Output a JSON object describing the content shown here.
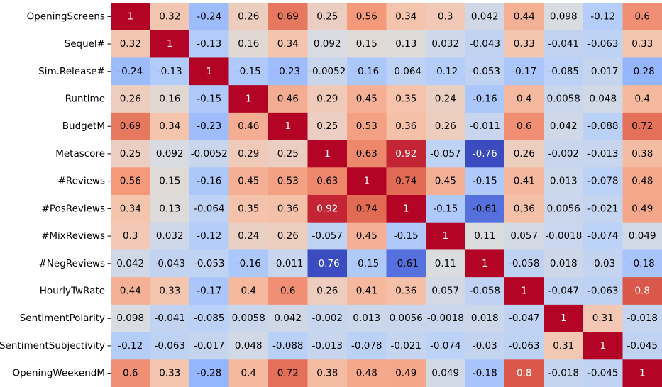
{
  "chart_data": {
    "type": "heatmap",
    "colormap": "coolwarm",
    "vmin": -0.76,
    "vmax": 1,
    "x_tick_labels_visible": false,
    "row_labels": [
      "OpeningScreens",
      "Sequel#",
      "Sim.Release#",
      "Runtime",
      "BudgetM",
      "Metascore",
      "#Reviews",
      "#PosReviews",
      "#MixReviews",
      "#NegReviews",
      "HourlyTwRate",
      "SentimentPolarity",
      "SentimentSubjectivity",
      "OpeningWeekendM"
    ],
    "values": [
      [
        1,
        0.32,
        -0.24,
        0.26,
        0.69,
        0.25,
        0.56,
        0.34,
        0.3,
        0.042,
        0.44,
        0.098,
        -0.12,
        0.6
      ],
      [
        0.32,
        1,
        -0.13,
        0.16,
        0.34,
        0.092,
        0.15,
        0.13,
        0.032,
        -0.043,
        0.33,
        -0.041,
        -0.063,
        0.33
      ],
      [
        -0.24,
        -0.13,
        1,
        -0.15,
        -0.23,
        -0.0052,
        -0.16,
        -0.064,
        -0.12,
        -0.053,
        -0.17,
        -0.085,
        -0.017,
        -0.28
      ],
      [
        0.26,
        0.16,
        -0.15,
        1,
        0.46,
        0.29,
        0.45,
        0.35,
        0.24,
        -0.16,
        0.4,
        0.0058,
        0.048,
        0.4
      ],
      [
        0.69,
        0.34,
        -0.23,
        0.46,
        1,
        0.25,
        0.53,
        0.36,
        0.26,
        -0.011,
        0.6,
        0.042,
        -0.088,
        0.72
      ],
      [
        0.25,
        0.092,
        -0.0052,
        0.29,
        0.25,
        1,
        0.63,
        0.92,
        -0.057,
        -0.76,
        0.26,
        -0.002,
        -0.013,
        0.38
      ],
      [
        0.56,
        0.15,
        -0.16,
        0.45,
        0.53,
        0.63,
        1,
        0.74,
        0.45,
        -0.15,
        0.41,
        0.013,
        -0.078,
        0.48
      ],
      [
        0.34,
        0.13,
        -0.064,
        0.35,
        0.36,
        0.92,
        0.74,
        1,
        -0.15,
        -0.61,
        0.36,
        0.0056,
        -0.021,
        0.49
      ],
      [
        0.3,
        0.032,
        -0.12,
        0.24,
        0.26,
        -0.057,
        0.45,
        -0.15,
        1,
        0.11,
        0.057,
        -0.0018,
        -0.074,
        0.049
      ],
      [
        0.042,
        -0.043,
        -0.053,
        -0.16,
        -0.011,
        -0.76,
        -0.15,
        -0.61,
        0.11,
        1,
        -0.058,
        0.018,
        -0.03,
        -0.18
      ],
      [
        0.44,
        0.33,
        -0.17,
        0.4,
        0.6,
        0.26,
        0.41,
        0.36,
        0.057,
        -0.058,
        1,
        -0.047,
        -0.063,
        0.8
      ],
      [
        0.098,
        -0.041,
        -0.085,
        0.0058,
        0.042,
        -0.002,
        0.013,
        0.0056,
        -0.0018,
        0.018,
        -0.047,
        1,
        0.31,
        -0.018
      ],
      [
        -0.12,
        -0.063,
        -0.017,
        0.048,
        -0.088,
        -0.013,
        -0.078,
        -0.021,
        -0.074,
        -0.03,
        -0.063,
        0.31,
        1,
        -0.045
      ],
      [
        0.6,
        0.33,
        -0.28,
        0.4,
        0.72,
        0.38,
        0.48,
        0.49,
        0.049,
        -0.18,
        0.8,
        -0.018,
        -0.045,
        1
      ]
    ]
  }
}
